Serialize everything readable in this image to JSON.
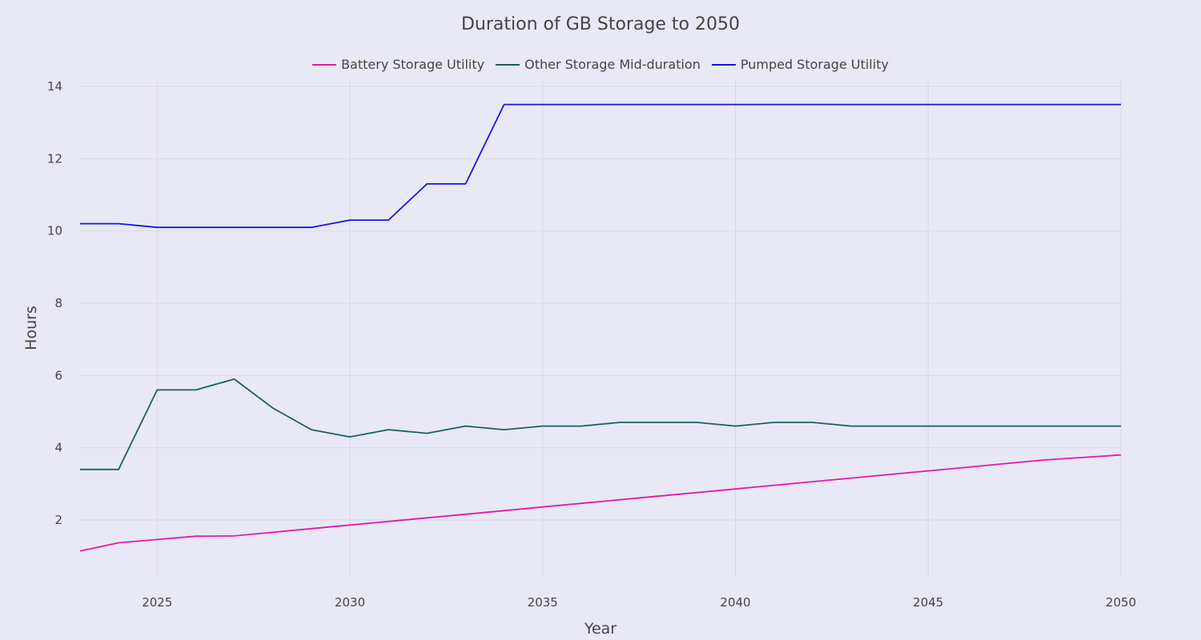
{
  "chart_data": {
    "type": "line",
    "title": "Duration of GB Storage to 2050",
    "xlabel": "Year",
    "ylabel": "Hours",
    "xlim": [
      2023,
      2050
    ],
    "ylim": [
      0.5,
      14.2
    ],
    "grid": true,
    "legend_position": "top-center",
    "x_ticks": [
      2025,
      2030,
      2035,
      2040,
      2045,
      2050
    ],
    "y_ticks": [
      2,
      4,
      6,
      8,
      10,
      12,
      14
    ],
    "x": [
      2023,
      2024,
      2025,
      2026,
      2027,
      2028,
      2029,
      2030,
      2031,
      2032,
      2033,
      2034,
      2035,
      2036,
      2037,
      2038,
      2039,
      2040,
      2041,
      2042,
      2043,
      2044,
      2045,
      2046,
      2047,
      2048,
      2049,
      2050
    ],
    "series": [
      {
        "name": "Battery Storage Utility",
        "color": "#e619a8",
        "values": [
          1.14,
          1.37,
          1.46,
          1.55,
          1.56,
          1.66,
          1.76,
          1.86,
          1.96,
          2.06,
          2.16,
          2.26,
          2.36,
          2.46,
          2.56,
          2.66,
          2.76,
          2.86,
          2.96,
          3.06,
          3.16,
          3.26,
          3.36,
          3.46,
          3.56,
          3.66,
          3.73,
          3.8
        ]
      },
      {
        "name": "Other Storage Mid-duration",
        "color": "#1a6060",
        "values": [
          3.4,
          3.4,
          5.6,
          5.6,
          5.9,
          5.1,
          4.5,
          4.3,
          4.5,
          4.4,
          4.6,
          4.5,
          4.6,
          4.6,
          4.7,
          4.7,
          4.7,
          4.6,
          4.7,
          4.7,
          4.6,
          4.6,
          4.6,
          4.6,
          4.6,
          4.6,
          4.6,
          4.6
        ]
      },
      {
        "name": "Pumped Storage Utility",
        "color": "#1515e0",
        "values": [
          10.2,
          10.2,
          10.1,
          10.1,
          10.1,
          10.1,
          10.1,
          10.3,
          10.3,
          11.3,
          11.3,
          13.5,
          13.5,
          13.5,
          13.5,
          13.5,
          13.5,
          13.5,
          13.5,
          13.5,
          13.5,
          13.5,
          13.5,
          13.5,
          13.5,
          13.5,
          13.5,
          13.5
        ]
      }
    ]
  }
}
